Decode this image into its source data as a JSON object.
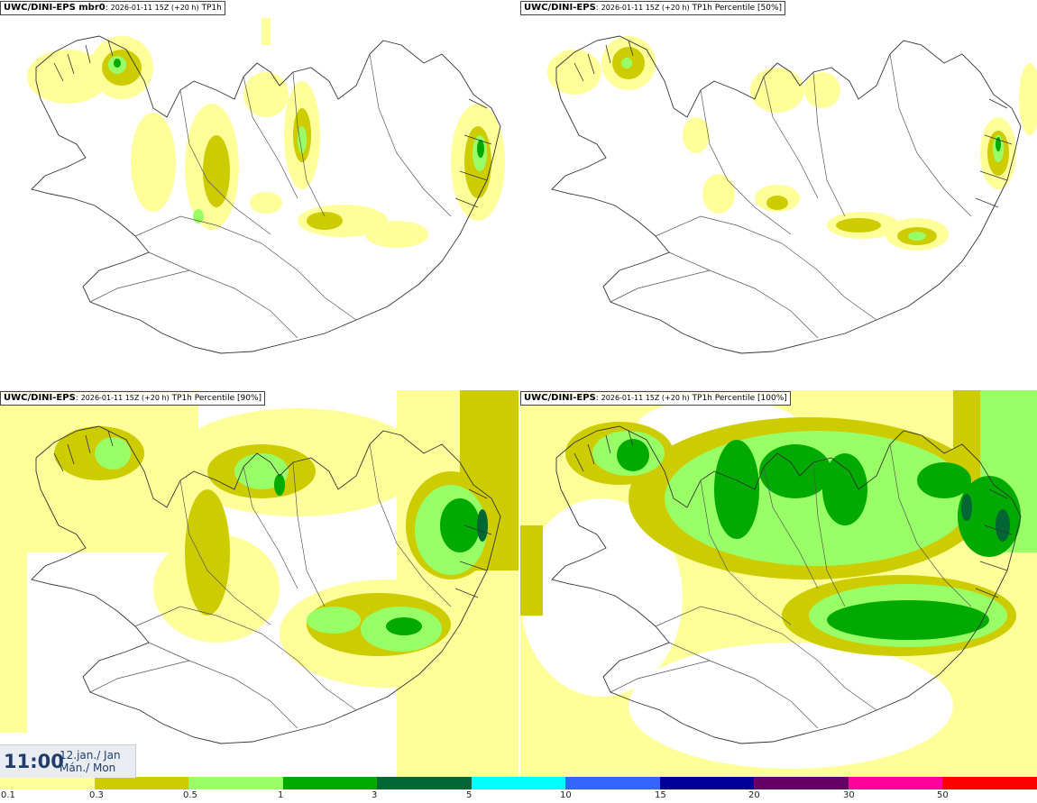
{
  "panels": [
    {
      "id": "tl",
      "model": "UWC/DINI-EPS mbr0",
      "run": "2026-01-11 15Z (+20 h)",
      "field": "TP1h"
    },
    {
      "id": "tr",
      "model": "UWC/DINI-EPS",
      "run": "2026-01-11 15Z (+20 h)",
      "field": "TP1h Percentile [50%]"
    },
    {
      "id": "bl",
      "model": "UWC/DINI-EPS",
      "run": "2026-01-11 15Z (+20 h)",
      "field": "TP1h Percentile [90%]"
    },
    {
      "id": "br",
      "model": "UWC/DINI-EPS",
      "run": "2026-01-11 15Z (+20 h)",
      "field": "TP1h Percentile [100%]"
    }
  ],
  "time": {
    "clock": "11:00",
    "date_line1": "12.jan./ Jan",
    "date_line2": "Mán./ Mon"
  },
  "colorbar": {
    "colors": [
      "#ffff99",
      "#cccc00",
      "#99ff66",
      "#00aa00",
      "#006633",
      "#00ffff",
      "#3366ff",
      "#000099",
      "#660066",
      "#ff0099",
      "#ff0000"
    ],
    "ticks": [
      "0.1",
      "0.3",
      "0.5",
      "1",
      "3",
      "5",
      "10",
      "15",
      "20",
      "30",
      "50"
    ]
  }
}
